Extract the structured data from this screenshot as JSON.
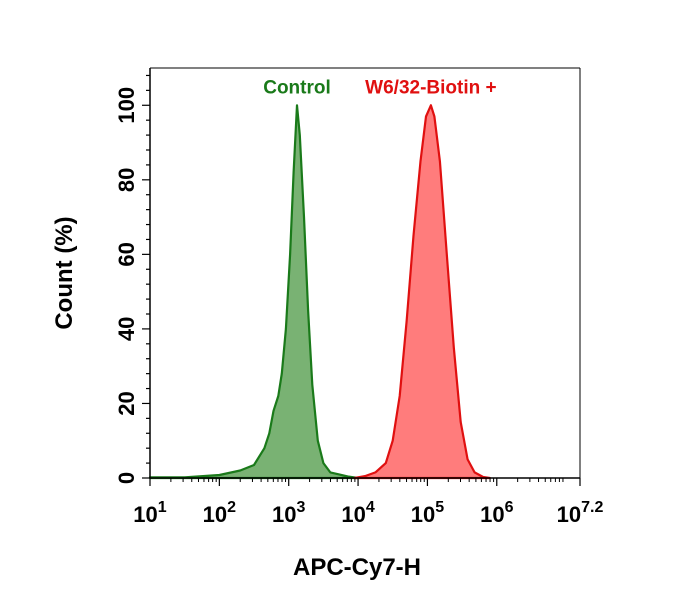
{
  "chart_data": {
    "type": "area",
    "title": "",
    "xlabel": "APC-Cy7-H",
    "ylabel": "Count  (%)",
    "x_scale": "log10",
    "xlim_log10": [
      1,
      7.2
    ],
    "ylim": [
      0,
      110
    ],
    "x_ticks": [
      {
        "log10": 1,
        "base": "10",
        "exp": "1"
      },
      {
        "log10": 2,
        "base": "10",
        "exp": "2"
      },
      {
        "log10": 3,
        "base": "10",
        "exp": "3"
      },
      {
        "log10": 4,
        "base": "10",
        "exp": "4"
      },
      {
        "log10": 5,
        "base": "10",
        "exp": "5"
      },
      {
        "log10": 6,
        "base": "10",
        "exp": "6"
      },
      {
        "log10": 7.2,
        "base": "10",
        "exp": "7.2"
      }
    ],
    "y_ticks": [
      "0",
      "20",
      "40",
      "60",
      "80",
      "100"
    ],
    "grid": false,
    "series": [
      {
        "name": "Control",
        "color": "#1a7a1a",
        "fill": "#6aaa64",
        "points_log10x": [
          [
            1.0,
            0.2
          ],
          [
            1.5,
            0.2
          ],
          [
            2.0,
            0.8
          ],
          [
            2.3,
            2.0
          ],
          [
            2.5,
            3.5
          ],
          [
            2.65,
            8.0
          ],
          [
            2.72,
            12.0
          ],
          [
            2.78,
            18.0
          ],
          [
            2.85,
            22.0
          ],
          [
            2.9,
            28.0
          ],
          [
            2.96,
            40.0
          ],
          [
            3.02,
            60.0
          ],
          [
            3.07,
            82.0
          ],
          [
            3.12,
            100.0
          ],
          [
            3.16,
            92.0
          ],
          [
            3.22,
            70.0
          ],
          [
            3.28,
            45.0
          ],
          [
            3.34,
            25.0
          ],
          [
            3.42,
            10.0
          ],
          [
            3.5,
            4.0
          ],
          [
            3.6,
            1.5
          ],
          [
            3.72,
            1.0
          ],
          [
            3.85,
            0.4
          ],
          [
            4.0,
            0.0
          ]
        ]
      },
      {
        "name": "W6/32-Biotin +",
        "color": "#e01010",
        "fill": "#ff6e6e",
        "points_log10x": [
          [
            3.95,
            0.0
          ],
          [
            4.1,
            0.5
          ],
          [
            4.25,
            1.5
          ],
          [
            4.4,
            4.0
          ],
          [
            4.5,
            10.0
          ],
          [
            4.6,
            22.0
          ],
          [
            4.7,
            42.0
          ],
          [
            4.8,
            65.0
          ],
          [
            4.9,
            85.0
          ],
          [
            4.98,
            97.0
          ],
          [
            5.05,
            100.0
          ],
          [
            5.1,
            97.0
          ],
          [
            5.18,
            85.0
          ],
          [
            5.28,
            60.0
          ],
          [
            5.38,
            35.0
          ],
          [
            5.48,
            15.0
          ],
          [
            5.58,
            5.0
          ],
          [
            5.68,
            1.5
          ],
          [
            5.8,
            0.3
          ],
          [
            5.9,
            0.0
          ]
        ]
      }
    ]
  }
}
